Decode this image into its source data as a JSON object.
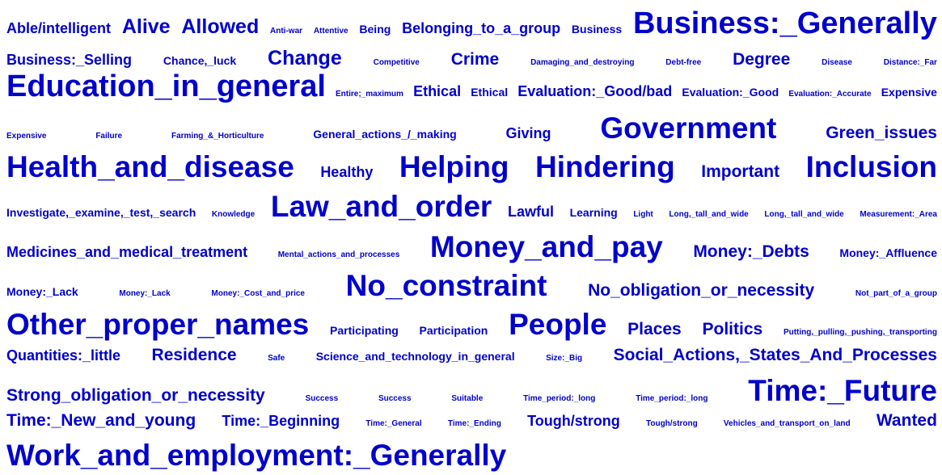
{
  "text_color": "#0000cc",
  "rows": [
    {
      "words": [
        {
          "text": "Able/intelligent",
          "weight": 3
        },
        {
          "text": "Alive",
          "weight": 5
        },
        {
          "text": "Allowed",
          "weight": 5
        },
        {
          "text": "Anti-war",
          "weight": 1
        },
        {
          "text": "Attentive",
          "weight": 1
        },
        {
          "text": "Being",
          "weight": 2
        },
        {
          "text": "Belonging_to_a_group",
          "weight": 3
        },
        {
          "text": "Business",
          "weight": 2
        },
        {
          "text": "Business:_Generally",
          "weight": 7
        }
      ]
    },
    {
      "words": [
        {
          "text": "Business:_Selling",
          "weight": 3
        },
        {
          "text": "Chance,_luck",
          "weight": 2
        },
        {
          "text": "Change",
          "weight": 5
        },
        {
          "text": "Competitive",
          "weight": 1
        },
        {
          "text": "Crime",
          "weight": 4
        },
        {
          "text": "Damaging_and_destroying",
          "weight": 1
        },
        {
          "text": "Debt-free",
          "weight": 1
        },
        {
          "text": "Degree",
          "weight": 4
        },
        {
          "text": "Disease",
          "weight": 1
        },
        {
          "text": "Distance:_Far",
          "weight": 1
        }
      ]
    },
    {
      "words": [
        {
          "text": "Education_in_general",
          "weight": 7
        },
        {
          "text": "Entire;_maximum",
          "weight": 1
        },
        {
          "text": "Ethical",
          "weight": 3
        },
        {
          "text": "Ethical",
          "weight": 2
        },
        {
          "text": "Evaluation:_Good/bad",
          "weight": 3
        },
        {
          "text": "Evaluation:_Good",
          "weight": 2
        },
        {
          "text": "Evaluation:_Accurate",
          "weight": 1
        },
        {
          "text": "Expensive",
          "weight": 2
        }
      ]
    },
    {
      "words": [
        {
          "text": "Expensive",
          "weight": 1
        },
        {
          "text": "Failure",
          "weight": 1
        },
        {
          "text": "Farming_&_Horticulture",
          "weight": 1
        },
        {
          "text": "General_actions_/_making",
          "weight": 2
        },
        {
          "text": "Giving",
          "weight": 3
        },
        {
          "text": "Government",
          "weight": 6
        },
        {
          "text": "Green_issues",
          "weight": 4
        }
      ]
    },
    {
      "words": [
        {
          "text": "Health_and_disease",
          "weight": 6
        },
        {
          "text": "Healthy",
          "weight": 3
        },
        {
          "text": "Helping",
          "weight": 6
        },
        {
          "text": "Hindering",
          "weight": 6
        },
        {
          "text": "Important",
          "weight": 4
        },
        {
          "text": "Inclusion",
          "weight": 6
        }
      ]
    },
    {
      "words": [
        {
          "text": "Investigate,_examine,_test,_search",
          "weight": 2
        },
        {
          "text": "Knowledge",
          "weight": 1
        },
        {
          "text": "Law_and_order",
          "weight": 6
        },
        {
          "text": "Lawful",
          "weight": 3
        },
        {
          "text": "Learning",
          "weight": 2
        },
        {
          "text": "Light",
          "weight": 1
        },
        {
          "text": "Long,_tall_and_wide",
          "weight": 1
        },
        {
          "text": "Long,_tall_and_wide",
          "weight": 1
        },
        {
          "text": "Measurement:_Area",
          "weight": 1
        }
      ]
    },
    {
      "words": [
        {
          "text": "Medicines_and_medical_treatment",
          "weight": 3
        },
        {
          "text": "Mental_actions_and_processes",
          "weight": 1
        },
        {
          "text": "Money_and_pay",
          "weight": 6
        },
        {
          "text": "Money:_Debts",
          "weight": 4
        },
        {
          "text": "Money:_Affluence",
          "weight": 2
        }
      ]
    },
    {
      "words": [
        {
          "text": "Money:_Lack",
          "weight": 2
        },
        {
          "text": "Money:_Lack",
          "weight": 1
        },
        {
          "text": "Money:_Cost_and_price",
          "weight": 1
        },
        {
          "text": "No_constraint",
          "weight": 6
        },
        {
          "text": "No_obligation_or_necessity",
          "weight": 4
        },
        {
          "text": "Not_part_of_a_group",
          "weight": 1
        }
      ]
    },
    {
      "words": [
        {
          "text": "Other_proper_names",
          "weight": 6
        },
        {
          "text": "Participating",
          "weight": 2
        },
        {
          "text": "Participation",
          "weight": 2
        },
        {
          "text": "People",
          "weight": 6
        },
        {
          "text": "Places",
          "weight": 4
        },
        {
          "text": "Politics",
          "weight": 4
        },
        {
          "text": "Putting,_pulling,_pushing,_transporting",
          "weight": 1
        }
      ]
    },
    {
      "words": [
        {
          "text": "Quantities:_little",
          "weight": 3
        },
        {
          "text": "Residence",
          "weight": 4
        },
        {
          "text": "Safe",
          "weight": 1
        },
        {
          "text": "Science_and_technology_in_general",
          "weight": 2
        },
        {
          "text": "Size:_Big",
          "weight": 1
        },
        {
          "text": "Social_Actions,_States_And_Processes",
          "weight": 4
        }
      ]
    },
    {
      "words": [
        {
          "text": "Strong_obligation_or_necessity",
          "weight": 4
        },
        {
          "text": "Success",
          "weight": 1
        },
        {
          "text": "Success",
          "weight": 1
        },
        {
          "text": "Suitable",
          "weight": 1
        },
        {
          "text": "Time_period:_long",
          "weight": 1
        },
        {
          "text": "Time_period:_long",
          "weight": 1
        },
        {
          "text": "Time:_Future",
          "weight": 6
        }
      ]
    },
    {
      "words": [
        {
          "text": "Time:_New_and_young",
          "weight": 4
        },
        {
          "text": "Time:_Beginning",
          "weight": 3
        },
        {
          "text": "Time:_General",
          "weight": 1
        },
        {
          "text": "Time:_Ending",
          "weight": 1
        },
        {
          "text": "Tough/strong",
          "weight": 3
        },
        {
          "text": "Tough/strong",
          "weight": 1
        },
        {
          "text": "Vehicles_and_transport_on_land",
          "weight": 1
        },
        {
          "text": "Wanted",
          "weight": 4
        }
      ]
    },
    {
      "words": [
        {
          "text": "Work_and_employment:_Generally",
          "weight": 6
        }
      ]
    }
  ]
}
